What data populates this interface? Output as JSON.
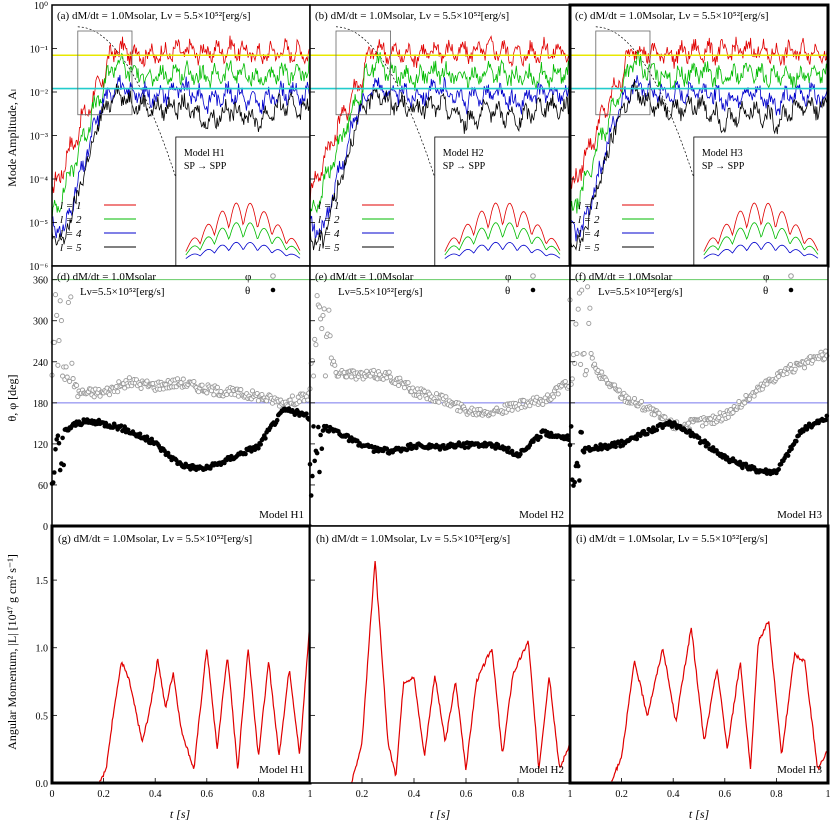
{
  "figure": {
    "row1": {
      "ylabel": "Mode Amplitude, Aₗ",
      "panels": [
        {
          "tag": "(a)",
          "header": "(a) dM/dt = 1.0Msolar, Lν = 5.5×10⁵²[erg/s]",
          "model_line1": "Model H1",
          "model_line2": "SP → SPP"
        },
        {
          "tag": "(b)",
          "header": "(b) dM/dt = 1.0Msolar, Lν = 5.5×10⁵²[erg/s]",
          "model_line1": "Model H2",
          "model_line2": "SP → SPP"
        },
        {
          "tag": "(c)",
          "header": "(c) dM/dt = 1.0Msolar, Lν = 5.5×10⁵²[erg/s]",
          "model_line1": "Model H3",
          "model_line2": "SP → SPP"
        }
      ],
      "yticks": [
        "10⁻⁶",
        "10⁻⁵",
        "10⁻⁴",
        "10⁻³",
        "10⁻²",
        "10⁻¹",
        "10⁰"
      ],
      "legend": [
        "l = 1",
        "l = 2",
        "l = 4",
        "l = 5"
      ],
      "ref_lines": [
        {
          "value": 0.07,
          "color": "#e8e800"
        },
        {
          "value": 0.012,
          "color": "#22cccc"
        }
      ]
    },
    "row2": {
      "ylabel": "θ, φ [deg]",
      "panels": [
        {
          "header1": "(d) dM/dt = 1.0Msolar",
          "header2": "Lν=5.5×10⁵²[erg/s]",
          "model": "Model H1"
        },
        {
          "header1": "(e) dM/dt = 1.0Msolar",
          "header2": "Lν=5.5×10⁵²[erg/s]",
          "model": "Model H2"
        },
        {
          "header1": "(f) dM/dt = 1.0Msolar",
          "header2": "Lν=5.5×10⁵²[erg/s]",
          "model": "Model H3"
        }
      ],
      "yticks": [
        "0",
        "60",
        "120",
        "180",
        "240",
        "300",
        "360"
      ],
      "legend": [
        "φ",
        "θ"
      ],
      "ref_lines": [
        {
          "value": 360,
          "color": "#66cc66"
        },
        {
          "value": 180,
          "color": "#7777ee"
        }
      ]
    },
    "row3": {
      "ylabel": "Angular Momentum, |L| [10⁴⁷ g cm² s⁻¹]",
      "panels": [
        {
          "header": "(g) dM/dt = 1.0Msolar, Lν = 5.5×10⁵²[erg/s]",
          "model": "Model H1"
        },
        {
          "header": "(h) dM/dt = 1.0Msolar, Lν = 5.5×10⁵²[erg/s]",
          "model": "Model H2"
        },
        {
          "header": "(i) dM/dt = 1.0Msolar, Lν = 5.5×10⁵²[erg/s]",
          "model": "Model H3"
        }
      ],
      "yticks": [
        "0.0",
        "0.5",
        "1.0",
        "1.5"
      ]
    },
    "xaxis": {
      "label": "t [s]",
      "ticks": [
        "0",
        "0.2",
        "0.4",
        "0.6",
        "0.8",
        "1"
      ]
    }
  },
  "chart_data": [
    {
      "type": "line",
      "panels": [
        "(a)",
        "(b)",
        "(c)"
      ],
      "ylabel": "Mode Amplitude, Aₗ",
      "xlabel": "t [s]",
      "yscale": "log",
      "xlim": [
        0,
        1
      ],
      "ylim": [
        1e-06,
        1
      ],
      "series_colors": {
        "l = 1": "#e00000",
        "l = 2": "#00bb00",
        "l = 4": "#0000cc",
        "l = 5": "#000000"
      },
      "series": [
        {
          "name": "l = 1",
          "x": [
            0,
            0.05,
            0.1,
            0.15,
            0.2,
            0.25,
            0.3,
            0.4,
            0.5,
            0.6,
            0.7,
            0.8,
            0.9,
            1.0
          ],
          "values": [
            3e-05,
            0.0002,
            0.001,
            0.005,
            0.02,
            0.1,
            0.08,
            0.07,
            0.09,
            0.08,
            0.1,
            0.07,
            0.09,
            0.08
          ]
        },
        {
          "name": "l = 2",
          "x": [
            0,
            0.05,
            0.1,
            0.15,
            0.2,
            0.25,
            0.3,
            0.4,
            0.5,
            0.6,
            0.7,
            0.8,
            0.9,
            1.0
          ],
          "values": [
            1e-05,
            5e-05,
            0.0003,
            0.002,
            0.01,
            0.05,
            0.03,
            0.02,
            0.03,
            0.02,
            0.03,
            0.02,
            0.025,
            0.03
          ]
        },
        {
          "name": "l = 4",
          "x": [
            0,
            0.05,
            0.1,
            0.15,
            0.2,
            0.25,
            0.3,
            0.4,
            0.5,
            0.6,
            0.7,
            0.8,
            0.9,
            1.0
          ],
          "values": [
            1e-05,
            5e-06,
            5e-05,
            0.0005,
            0.005,
            0.015,
            0.01,
            0.008,
            0.012,
            0.006,
            0.01,
            0.005,
            0.01,
            0.008
          ]
        },
        {
          "name": "l = 5",
          "x": [
            0,
            0.05,
            0.1,
            0.15,
            0.2,
            0.25,
            0.3,
            0.4,
            0.5,
            0.6,
            0.7,
            0.8,
            0.9,
            1.0
          ],
          "values": [
            5e-06,
            3e-06,
            3e-05,
            0.0003,
            0.003,
            0.01,
            0.006,
            0.004,
            0.005,
            0.002,
            0.004,
            0.002,
            0.005,
            0.004
          ]
        }
      ],
      "reference_lines": [
        0.07,
        0.012
      ]
    },
    {
      "type": "scatter",
      "panels": [
        "(d)",
        "(e)",
        "(f)"
      ],
      "ylabel": "θ, φ [deg]",
      "xlabel": "t [s]",
      "xlim": [
        0,
        1
      ],
      "ylim": [
        0,
        380
      ],
      "series": [
        {
          "name": "φ",
          "x": [
            0.02,
            0.05,
            0.1,
            0.2,
            0.3,
            0.4,
            0.5,
            0.6,
            0.7,
            0.8,
            0.9,
            1.0
          ],
          "values": [
            320,
            250,
            195,
            195,
            210,
            205,
            210,
            200,
            195,
            190,
            180,
            190
          ]
        },
        {
          "name": "θ",
          "x": [
            0.02,
            0.05,
            0.1,
            0.2,
            0.3,
            0.4,
            0.5,
            0.6,
            0.7,
            0.8,
            0.9,
            1.0
          ],
          "values": [
            80,
            130,
            135,
            130,
            130,
            130,
            110,
            100,
            100,
            100,
            150,
            150
          ]
        }
      ],
      "reference_lines": [
        360,
        180
      ]
    },
    {
      "type": "line",
      "panels": [
        "(g)",
        "(h)",
        "(i)"
      ],
      "ylabel": "Angular Momentum, |L| [10⁴⁷ g cm² s⁻¹]",
      "xlabel": "t [s]",
      "xlim": [
        0,
        1
      ],
      "ylim": [
        0,
        1.9
      ],
      "series": [
        {
          "name": "Model H1",
          "x": [
            0.18,
            0.21,
            0.24,
            0.27,
            0.3,
            0.35,
            0.38,
            0.41,
            0.44,
            0.47,
            0.5,
            0.55,
            0.6,
            0.64,
            0.68,
            0.72,
            0.76,
            0.8,
            0.84,
            0.88,
            0.92,
            0.96,
            1.0
          ],
          "values": [
            0.0,
            0.1,
            0.55,
            0.9,
            0.75,
            0.3,
            0.55,
            0.92,
            0.55,
            0.82,
            0.4,
            0.1,
            1.0,
            0.25,
            0.95,
            0.1,
            1.0,
            0.2,
            0.9,
            0.2,
            0.85,
            0.2,
            1.2
          ]
        },
        {
          "name": "Model H2",
          "x": [
            0.16,
            0.2,
            0.25,
            0.3,
            0.33,
            0.36,
            0.4,
            0.44,
            0.48,
            0.52,
            0.56,
            0.6,
            0.64,
            0.7,
            0.74,
            0.78,
            0.84,
            0.88,
            0.92,
            0.96,
            1.0
          ],
          "values": [
            0.0,
            0.3,
            1.65,
            0.3,
            0.05,
            0.75,
            0.78,
            0.2,
            0.8,
            0.3,
            0.75,
            0.1,
            0.75,
            1.0,
            0.2,
            0.8,
            1.05,
            0.1,
            0.8,
            0.1,
            0.3
          ]
        },
        {
          "name": "Model H3",
          "x": [
            0.16,
            0.2,
            0.25,
            0.3,
            0.36,
            0.41,
            0.47,
            0.52,
            0.57,
            0.61,
            0.66,
            0.7,
            0.73,
            0.77,
            0.82,
            0.87,
            0.91,
            0.96,
            1.0
          ],
          "values": [
            0.0,
            0.2,
            0.9,
            0.5,
            1.0,
            0.45,
            1.15,
            0.3,
            0.85,
            0.25,
            0.9,
            0.1,
            1.05,
            1.2,
            0.2,
            0.95,
            0.9,
            0.1,
            0.25
          ]
        }
      ]
    }
  ]
}
